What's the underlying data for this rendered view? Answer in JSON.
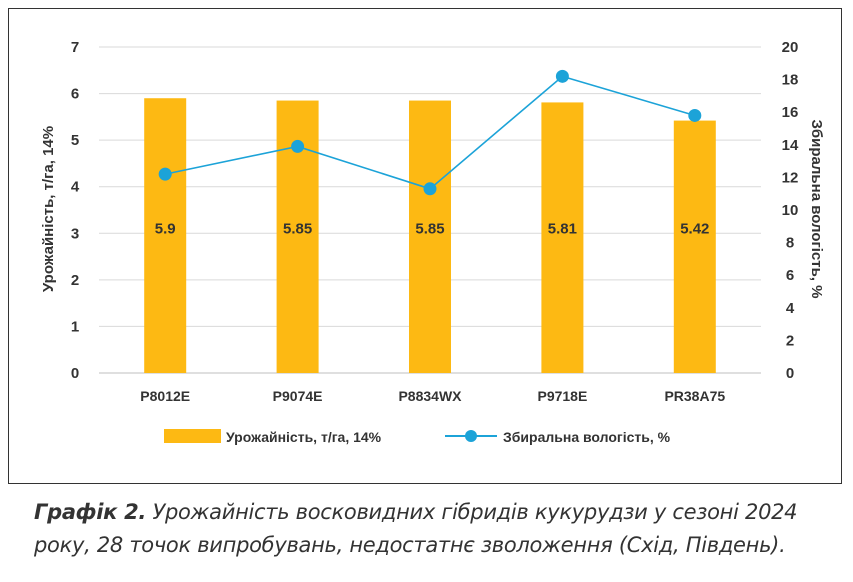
{
  "chart_data": {
    "type": "bar+line",
    "categories": [
      "P8012E",
      "P9074E",
      "P8834WX",
      "P9718E",
      "PR38A75"
    ],
    "series": [
      {
        "name": "Урожайність, т/га, 14%",
        "kind": "bar",
        "axis": "left",
        "color": "#FDB913",
        "values": [
          5.9,
          5.85,
          5.85,
          5.81,
          5.42
        ],
        "value_labels": [
          "5.9",
          "5.85",
          "5.85",
          "5.81",
          "5.42"
        ]
      },
      {
        "name": "Збиральна вологість, %",
        "kind": "line",
        "axis": "right",
        "color": "#1CA3D8",
        "values": [
          12.2,
          13.9,
          11.3,
          18.2,
          15.8
        ]
      }
    ],
    "ylabel": "Урожайність, т/га, 14%",
    "y2label": "Збиральна вологість, %",
    "ylim": [
      0,
      7
    ],
    "y2lim": [
      0,
      20
    ],
    "yticks": [
      "0",
      "1",
      "2",
      "3",
      "4",
      "5",
      "6",
      "7"
    ],
    "y2ticks": [
      "0",
      "2",
      "4",
      "6",
      "8",
      "10",
      "12",
      "14",
      "16",
      "18",
      "20"
    ],
    "grid": true,
    "legend_position": "bottom"
  },
  "caption": {
    "lead": "Графік 2.",
    "text": " Урожайність восковидних гібридів кукурудзи у сезоні 2024 року, 28 точок випробувань, недостатнє зволоження (Схід, Південь)."
  }
}
